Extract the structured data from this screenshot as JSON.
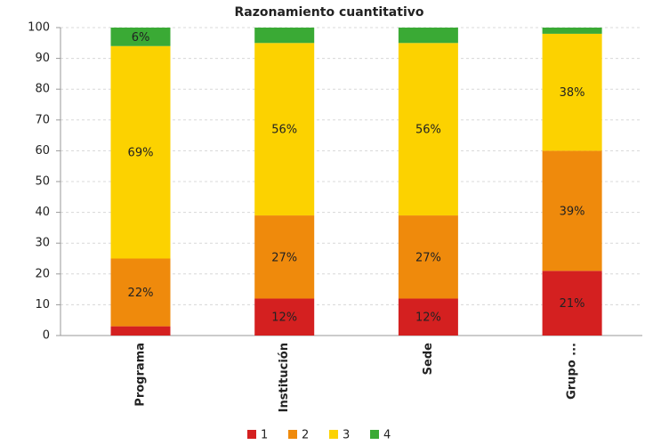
{
  "chart_data": {
    "type": "stacked_bar",
    "title": "Razonamiento cuantitativo",
    "categories": [
      "Programa",
      "Institución",
      "Sede",
      "Grupo ..."
    ],
    "series": [
      {
        "name": "1",
        "color": "#d42020",
        "values": [
          3,
          12,
          12,
          21
        ],
        "value_labels": [
          null,
          "12%",
          "12%",
          "21%"
        ]
      },
      {
        "name": "2",
        "color": "#ef8a0c",
        "values": [
          22,
          27,
          27,
          39
        ],
        "value_labels": [
          "22%",
          "27%",
          "27%",
          "39%"
        ]
      },
      {
        "name": "3",
        "color": "#fcd200",
        "values": [
          69,
          56,
          56,
          38
        ],
        "value_labels": [
          "69%",
          "56%",
          "56%",
          "38%"
        ]
      },
      {
        "name": "4",
        "color": "#3aaa35",
        "values": [
          6,
          5,
          5,
          2
        ],
        "value_labels": [
          "6%",
          null,
          null,
          null
        ]
      }
    ],
    "ylim": [
      0,
      100
    ],
    "yticks": [
      0,
      10,
      20,
      30,
      40,
      50,
      60,
      70,
      80,
      90,
      100
    ],
    "grid": true,
    "legend": "bottom"
  }
}
